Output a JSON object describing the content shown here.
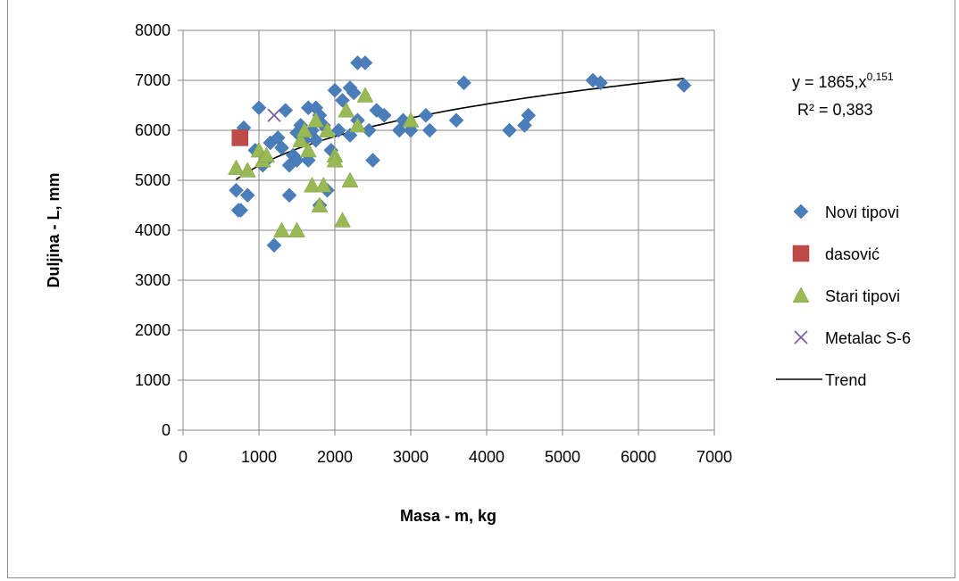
{
  "chart_data": {
    "type": "scatter",
    "xlabel": "Masa - m, kg",
    "ylabel": "Duljina - L, mm",
    "xlim": [
      0,
      7000
    ],
    "ylim": [
      0,
      8000
    ],
    "x_ticks": [
      "0",
      "1000",
      "2000",
      "3000",
      "4000",
      "5000",
      "6000",
      "7000"
    ],
    "y_ticks": [
      "0",
      "1000",
      "2000",
      "3000",
      "4000",
      "5000",
      "6000",
      "7000",
      "8000"
    ],
    "grid": true,
    "legend_position": "right",
    "trend_equation": {
      "base": "y = 1865,x",
      "exponent": "0,151",
      "r2": "R² = 0,383"
    },
    "series": [
      {
        "name": "Novi tipovi",
        "marker": "diamond",
        "color": "#4a7ebb",
        "points": [
          [
            700,
            4800
          ],
          [
            730,
            4400
          ],
          [
            760,
            4400
          ],
          [
            800,
            6050
          ],
          [
            850,
            4700
          ],
          [
            950,
            5600
          ],
          [
            1000,
            6450
          ],
          [
            1050,
            5300
          ],
          [
            1100,
            5400
          ],
          [
            1150,
            5750
          ],
          [
            1200,
            3700
          ],
          [
            1250,
            5850
          ],
          [
            1300,
            5650
          ],
          [
            1350,
            6400
          ],
          [
            1400,
            4700
          ],
          [
            1400,
            5300
          ],
          [
            1450,
            5500
          ],
          [
            1500,
            5950
          ],
          [
            1500,
            5400
          ],
          [
            1550,
            6100
          ],
          [
            1600,
            5800
          ],
          [
            1650,
            6450
          ],
          [
            1650,
            5400
          ],
          [
            1700,
            6000
          ],
          [
            1750,
            6450
          ],
          [
            1750,
            5800
          ],
          [
            1800,
            6300
          ],
          [
            1800,
            4500
          ],
          [
            1850,
            6100
          ],
          [
            1900,
            4800
          ],
          [
            1950,
            5600
          ],
          [
            2000,
            6800
          ],
          [
            2050,
            6000
          ],
          [
            2100,
            6600
          ],
          [
            2200,
            6850
          ],
          [
            2200,
            5900
          ],
          [
            2250,
            6750
          ],
          [
            2300,
            7350
          ],
          [
            2300,
            6200
          ],
          [
            2400,
            7350
          ],
          [
            2450,
            6000
          ],
          [
            2500,
            5400
          ],
          [
            2550,
            6400
          ],
          [
            2650,
            6300
          ],
          [
            2850,
            6000
          ],
          [
            2900,
            6200
          ],
          [
            3000,
            6000
          ],
          [
            3200,
            6300
          ],
          [
            3250,
            6000
          ],
          [
            3600,
            6200
          ],
          [
            3700,
            6950
          ],
          [
            4300,
            6000
          ],
          [
            4500,
            6100
          ],
          [
            4550,
            6300
          ],
          [
            5400,
            7000
          ],
          [
            5500,
            6950
          ],
          [
            6600,
            6900
          ]
        ]
      },
      {
        "name": "dasović",
        "marker": "square",
        "color": "#be4b48",
        "points": [
          [
            750,
            5850
          ]
        ]
      },
      {
        "name": "Stari tipovi",
        "marker": "triangle",
        "color": "#98b954",
        "points": [
          [
            700,
            5250
          ],
          [
            850,
            5200
          ],
          [
            1000,
            5600
          ],
          [
            1050,
            5400
          ],
          [
            1100,
            5500
          ],
          [
            1300,
            4000
          ],
          [
            1500,
            4000
          ],
          [
            1550,
            5800
          ],
          [
            1600,
            6000
          ],
          [
            1650,
            5600
          ],
          [
            1700,
            4900
          ],
          [
            1750,
            6200
          ],
          [
            1800,
            4500
          ],
          [
            1850,
            4900
          ],
          [
            1900,
            6000
          ],
          [
            2000,
            5500
          ],
          [
            2000,
            5400
          ],
          [
            2100,
            4200
          ],
          [
            2150,
            6400
          ],
          [
            2200,
            5000
          ],
          [
            2300,
            6100
          ],
          [
            2400,
            6700
          ],
          [
            3000,
            6200
          ]
        ]
      },
      {
        "name": "Metalac S-6",
        "marker": "x",
        "color": "#7d60a0",
        "points": [
          [
            1200,
            6300
          ]
        ]
      },
      {
        "name": "Trend",
        "marker": "line",
        "color": "#000000",
        "function": {
          "a": 1865,
          "b": 0.151,
          "x_from": 700,
          "x_to": 6600
        }
      }
    ]
  }
}
